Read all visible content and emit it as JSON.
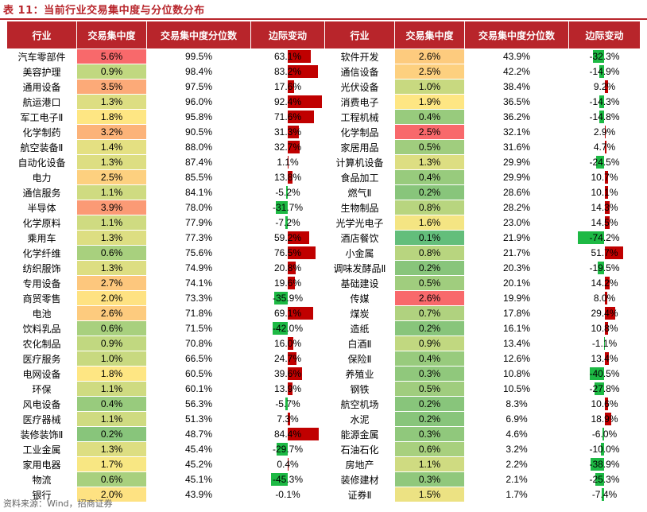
{
  "title": "表 11：当前行业交易集中度与分位数分布",
  "headers": [
    "行业",
    "交易集中度",
    "交易集中度分位数",
    "边际变动",
    "行业",
    "交易集中度",
    "交易集中度分位数",
    "边际变动"
  ],
  "source": "资料来源：Wind，招商证券",
  "colors": {
    "header_bg": "#b8252b",
    "bar_pos": "#c00000",
    "bar_neg": "#1db944"
  },
  "left": [
    {
      "ind": "汽车零部件",
      "conc": "5.6%",
      "pct": "99.5%",
      "chg": "63.1%",
      "chg_v": 63.1,
      "conc_color": "#f8696b"
    },
    {
      "ind": "美容护理",
      "conc": "0.9%",
      "pct": "98.4%",
      "chg": "83.2%",
      "chg_v": 83.2,
      "conc_color": "#c1d880"
    },
    {
      "ind": "通用设备",
      "conc": "3.5%",
      "pct": "97.5%",
      "chg": "17.6%",
      "chg_v": 17.6,
      "conc_color": "#fcaa78"
    },
    {
      "ind": "航运港口",
      "conc": "1.3%",
      "pct": "96.0%",
      "chg": "92.4%",
      "chg_v": 92.4,
      "conc_color": "#ddde82"
    },
    {
      "ind": "军工电子Ⅱ",
      "conc": "1.8%",
      "pct": "95.8%",
      "chg": "71.6%",
      "chg_v": 71.6,
      "conc_color": "#fee683"
    },
    {
      "ind": "化学制药",
      "conc": "3.2%",
      "pct": "90.5%",
      "chg": "31.3%",
      "chg_v": 31.3,
      "conc_color": "#fcb379"
    },
    {
      "ind": "航空装备Ⅱ",
      "conc": "1.4%",
      "pct": "88.0%",
      "chg": "32.7%",
      "chg_v": 32.7,
      "conc_color": "#e4e082"
    },
    {
      "ind": "自动化设备",
      "conc": "1.3%",
      "pct": "87.4%",
      "chg": "1.1%",
      "chg_v": 1.1,
      "conc_color": "#ddde82"
    },
    {
      "ind": "电力",
      "conc": "2.5%",
      "pct": "85.5%",
      "chg": "13.8%",
      "chg_v": 13.8,
      "conc_color": "#fdd07f"
    },
    {
      "ind": "通信服务",
      "conc": "1.1%",
      "pct": "84.1%",
      "chg": "-5.2%",
      "chg_v": -5.2,
      "conc_color": "#cfdb81"
    },
    {
      "ind": "半导体",
      "conc": "3.9%",
      "pct": "78.0%",
      "chg": "-31.7%",
      "chg_v": -31.7,
      "conc_color": "#fb9a75"
    },
    {
      "ind": "化学原料",
      "conc": "1.1%",
      "pct": "77.9%",
      "chg": "-7.2%",
      "chg_v": -7.2,
      "conc_color": "#cfdb81"
    },
    {
      "ind": "乘用车",
      "conc": "1.3%",
      "pct": "77.3%",
      "chg": "59.2%",
      "chg_v": 59.2,
      "conc_color": "#ddde82"
    },
    {
      "ind": "化学纤维",
      "conc": "0.6%",
      "pct": "75.6%",
      "chg": "76.5%",
      "chg_v": 76.5,
      "conc_color": "#a8d07e"
    },
    {
      "ind": "纺织服饰",
      "conc": "1.3%",
      "pct": "74.9%",
      "chg": "20.8%",
      "chg_v": 20.8,
      "conc_color": "#ddde82"
    },
    {
      "ind": "专用设备",
      "conc": "2.7%",
      "pct": "74.1%",
      "chg": "19.6%",
      "chg_v": 19.6,
      "conc_color": "#fdc77d"
    },
    {
      "ind": "商贸零售",
      "conc": "2.0%",
      "pct": "73.3%",
      "chg": "-35.9%",
      "chg_v": -35.9,
      "conc_color": "#fee282"
    },
    {
      "ind": "电池",
      "conc": "2.6%",
      "pct": "71.8%",
      "chg": "69.1%",
      "chg_v": 69.1,
      "conc_color": "#fdcb7e"
    },
    {
      "ind": "饮料乳品",
      "conc": "0.6%",
      "pct": "71.5%",
      "chg": "-42.0%",
      "chg_v": -42.0,
      "conc_color": "#a8d07e"
    },
    {
      "ind": "农化制品",
      "conc": "0.9%",
      "pct": "70.8%",
      "chg": "16.0%",
      "chg_v": 16.0,
      "conc_color": "#c1d880"
    },
    {
      "ind": "医疗服务",
      "conc": "1.0%",
      "pct": "66.5%",
      "chg": "24.7%",
      "chg_v": 24.7,
      "conc_color": "#c8d980"
    },
    {
      "ind": "电网设备",
      "conc": "1.8%",
      "pct": "60.5%",
      "chg": "39.6%",
      "chg_v": 39.6,
      "conc_color": "#fee683"
    },
    {
      "ind": "环保",
      "conc": "1.1%",
      "pct": "60.1%",
      "chg": "13.9%",
      "chg_v": 13.9,
      "conc_color": "#cfdb81"
    },
    {
      "ind": "风电设备",
      "conc": "0.4%",
      "pct": "56.3%",
      "chg": "-5.7%",
      "chg_v": -5.7,
      "conc_color": "#98cb7d"
    },
    {
      "ind": "医疗器械",
      "conc": "1.1%",
      "pct": "51.3%",
      "chg": "7.3%",
      "chg_v": 7.3,
      "conc_color": "#cfdb81"
    },
    {
      "ind": "装修装饰Ⅱ",
      "conc": "0.2%",
      "pct": "48.7%",
      "chg": "84.4%",
      "chg_v": 84.4,
      "conc_color": "#88c57b"
    },
    {
      "ind": "工业金属",
      "conc": "1.3%",
      "pct": "45.4%",
      "chg": "-29.7%",
      "chg_v": -29.7,
      "conc_color": "#ddde82"
    },
    {
      "ind": "家用电器",
      "conc": "1.7%",
      "pct": "45.2%",
      "chg": "0.4%",
      "chg_v": 0.4,
      "conc_color": "#f8e783"
    },
    {
      "ind": "物流",
      "conc": "0.6%",
      "pct": "45.1%",
      "chg": "-45.3%",
      "chg_v": -45.3,
      "conc_color": "#a8d07e"
    },
    {
      "ind": "银行",
      "conc": "2.0%",
      "pct": "43.9%",
      "chg": "-0.1%",
      "chg_v": -0.1,
      "conc_color": "#fee282"
    }
  ],
  "right": [
    {
      "ind": "软件开发",
      "conc": "2.6%",
      "pct": "43.9%",
      "chg": "-32.3%",
      "chg_v": -32.3,
      "conc_color": "#fdcb7e"
    },
    {
      "ind": "通信设备",
      "conc": "2.5%",
      "pct": "42.2%",
      "chg": "-14.9%",
      "chg_v": -14.9,
      "conc_color": "#fdd07f"
    },
    {
      "ind": "光伏设备",
      "conc": "1.0%",
      "pct": "38.4%",
      "chg": "9.2%",
      "chg_v": 9.2,
      "conc_color": "#c8d980"
    },
    {
      "ind": "消费电子",
      "conc": "1.9%",
      "pct": "36.5%",
      "chg": "-14.3%",
      "chg_v": -14.3,
      "conc_color": "#fee683"
    },
    {
      "ind": "工程机械",
      "conc": "0.4%",
      "pct": "36.2%",
      "chg": "-14.8%",
      "chg_v": -14.8,
      "conc_color": "#98cb7d"
    },
    {
      "ind": "化学制品",
      "conc": "2.5%",
      "pct": "32.1%",
      "chg": "2.9%",
      "chg_v": 2.9,
      "conc_color": "#f8696b"
    },
    {
      "ind": "家居用品",
      "conc": "0.5%",
      "pct": "31.6%",
      "chg": "4.7%",
      "chg_v": 4.7,
      "conc_color": "#a0cd7e"
    },
    {
      "ind": "计算机设备",
      "conc": "1.3%",
      "pct": "29.9%",
      "chg": "-24.5%",
      "chg_v": -24.5,
      "conc_color": "#ddde82"
    },
    {
      "ind": "食品加工",
      "conc": "0.4%",
      "pct": "29.9%",
      "chg": "10.7%",
      "chg_v": 10.7,
      "conc_color": "#98cb7d"
    },
    {
      "ind": "燃气Ⅱ",
      "conc": "0.2%",
      "pct": "28.6%",
      "chg": "10.1%",
      "chg_v": 10.1,
      "conc_color": "#88c57b"
    },
    {
      "ind": "生物制品",
      "conc": "0.8%",
      "pct": "28.2%",
      "chg": "14.3%",
      "chg_v": 14.3,
      "conc_color": "#b8d57f"
    },
    {
      "ind": "光学光电子",
      "conc": "1.6%",
      "pct": "23.0%",
      "chg": "14.5%",
      "chg_v": 14.5,
      "conc_color": "#f4e583"
    },
    {
      "ind": "酒店餐饮",
      "conc": "0.1%",
      "pct": "21.9%",
      "chg": "-74.2%",
      "chg_v": -74.2,
      "conc_color": "#63be7b"
    },
    {
      "ind": "小金属",
      "conc": "0.8%",
      "pct": "21.7%",
      "chg": "51.7%",
      "chg_v": 51.7,
      "conc_color": "#b8d57f"
    },
    {
      "ind": "调味发酵品Ⅱ",
      "conc": "0.2%",
      "pct": "20.3%",
      "chg": "-19.5%",
      "chg_v": -19.5,
      "conc_color": "#88c57b"
    },
    {
      "ind": "基础建设",
      "conc": "0.5%",
      "pct": "20.1%",
      "chg": "14.2%",
      "chg_v": 14.2,
      "conc_color": "#a0cd7e"
    },
    {
      "ind": "传媒",
      "conc": "2.6%",
      "pct": "19.9%",
      "chg": "8.0%",
      "chg_v": 8.0,
      "conc_color": "#f8696b"
    },
    {
      "ind": "煤炭",
      "conc": "0.7%",
      "pct": "17.8%",
      "chg": "29.4%",
      "chg_v": 29.4,
      "conc_color": "#b0d27f"
    },
    {
      "ind": "造纸",
      "conc": "0.2%",
      "pct": "16.1%",
      "chg": "10.8%",
      "chg_v": 10.8,
      "conc_color": "#88c57b"
    },
    {
      "ind": "白酒Ⅱ",
      "conc": "0.9%",
      "pct": "13.4%",
      "chg": "-1.1%",
      "chg_v": -1.1,
      "conc_color": "#c1d880"
    },
    {
      "ind": "保险Ⅱ",
      "conc": "0.4%",
      "pct": "12.6%",
      "chg": "13.4%",
      "chg_v": 13.4,
      "conc_color": "#98cb7d"
    },
    {
      "ind": "养殖业",
      "conc": "0.3%",
      "pct": "10.8%",
      "chg": "-40.5%",
      "chg_v": -40.5,
      "conc_color": "#90c87c"
    },
    {
      "ind": "钢铁",
      "conc": "0.5%",
      "pct": "10.5%",
      "chg": "-27.8%",
      "chg_v": -27.8,
      "conc_color": "#a0cd7e"
    },
    {
      "ind": "航空机场",
      "conc": "0.2%",
      "pct": "8.3%",
      "chg": "10.6%",
      "chg_v": 10.6,
      "conc_color": "#88c57b"
    },
    {
      "ind": "水泥",
      "conc": "0.2%",
      "pct": "6.9%",
      "chg": "18.9%",
      "chg_v": 18.9,
      "conc_color": "#88c57b"
    },
    {
      "ind": "能源金属",
      "conc": "0.3%",
      "pct": "4.6%",
      "chg": "-6.0%",
      "chg_v": -6.0,
      "conc_color": "#90c87c"
    },
    {
      "ind": "石油石化",
      "conc": "0.6%",
      "pct": "3.2%",
      "chg": "-10.0%",
      "chg_v": -10.0,
      "conc_color": "#a8d07e"
    },
    {
      "ind": "房地产",
      "conc": "1.1%",
      "pct": "2.2%",
      "chg": "-38.9%",
      "chg_v": -38.9,
      "conc_color": "#cfdb81"
    },
    {
      "ind": "装修建材",
      "conc": "0.3%",
      "pct": "2.1%",
      "chg": "-25.3%",
      "chg_v": -25.3,
      "conc_color": "#90c87c"
    },
    {
      "ind": "证券Ⅱ",
      "conc": "1.5%",
      "pct": "1.7%",
      "chg": "-7.4%",
      "chg_v": -7.4,
      "conc_color": "#ece283"
    }
  ]
}
